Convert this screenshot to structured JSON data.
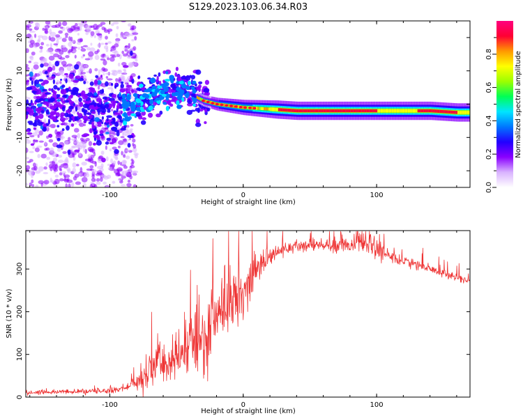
{
  "figure": {
    "title": "S129.2023.103.06.34.R03"
  },
  "chart_data": [
    {
      "type": "heatmap",
      "xlabel": "Height of straight line (km)",
      "ylabel": "Frequency (Hz)",
      "xlim": [
        -163,
        170
      ],
      "ylim": [
        -25,
        25
      ],
      "xticks": [
        -100,
        0,
        100
      ],
      "yticks": [
        -20,
        -10,
        0,
        10,
        20
      ],
      "grid": false,
      "colorbar": {
        "label": "Normalized spectral amplitude",
        "range": [
          0,
          1
        ],
        "ticks": [
          "0.0",
          "0.2",
          "0.4",
          "0.6",
          "0.8"
        ],
        "colors": [
          "#ffffff",
          "#d9b3ff",
          "#8a00ff",
          "#2200ff",
          "#0077ff",
          "#00e5ff",
          "#00ff55",
          "#9cff00",
          "#ffff00",
          "#ff9900",
          "#ff0033",
          "#ff007f"
        ]
      },
      "trace": {
        "x": [
          -163,
          -140,
          -120,
          -100,
          -90,
          -80,
          -70,
          -60,
          -50,
          -45,
          -40,
          -35,
          -30,
          -20,
          -10,
          0,
          20,
          40,
          60,
          80,
          100,
          120,
          140,
          160,
          170
        ],
        "center_hz": [
          0,
          0,
          -1,
          -2,
          -1,
          0,
          3,
          4,
          4,
          4,
          4,
          2,
          1,
          0,
          -0.5,
          -1,
          -1.5,
          -2,
          -2,
          -2,
          -2,
          -2,
          -2,
          -2.5,
          -2.5
        ]
      }
    },
    {
      "type": "line",
      "xlabel": "Height of straight line (km)",
      "ylabel": "SNR (10 * v/v)",
      "xlim": [
        -163,
        170
      ],
      "ylim": [
        0,
        390
      ],
      "xticks": [
        -100,
        0,
        100
      ],
      "yticks": [
        0,
        100,
        200,
        300
      ],
      "grid": false,
      "series": [
        {
          "color": "#ee3333",
          "envelope": {
            "x": [
              -163,
              -140,
              -120,
              -100,
              -90,
              -80,
              -75,
              -70,
              -65,
              -60,
              -55,
              -50,
              -45,
              -40,
              -35,
              -30,
              -25,
              -20,
              -15,
              -10,
              -5,
              0,
              5,
              10,
              15,
              20,
              25,
              30,
              40,
              50,
              60,
              70,
              80,
              90,
              95,
              100,
              110,
              120,
              130,
              140,
              150,
              160,
              170
            ],
            "y": [
              10,
              12,
              13,
              15,
              20,
              32,
              45,
              60,
              75,
              80,
              82,
              88,
              100,
              120,
              130,
              115,
              155,
              185,
              210,
              225,
              235,
              245,
              270,
              300,
              320,
              330,
              338,
              345,
              352,
              355,
              355,
              357,
              357,
              360,
              355,
              345,
              330,
              320,
              310,
              300,
              290,
              280,
              270
            ]
          },
          "noise": {
            "x": [
              -163,
              -120,
              -90,
              -80,
              -70,
              -60,
              -50,
              -40,
              -30,
              -20,
              -10,
              0,
              10,
              20,
              30,
              50,
              80,
              95,
              110,
              140,
              170
            ],
            "amplitude": [
              6,
              6,
              8,
              15,
              55,
              65,
              55,
              90,
              110,
              100,
              80,
              60,
              40,
              25,
              15,
              15,
              20,
              28,
              15,
              12,
              10
            ]
          }
        }
      ]
    }
  ]
}
